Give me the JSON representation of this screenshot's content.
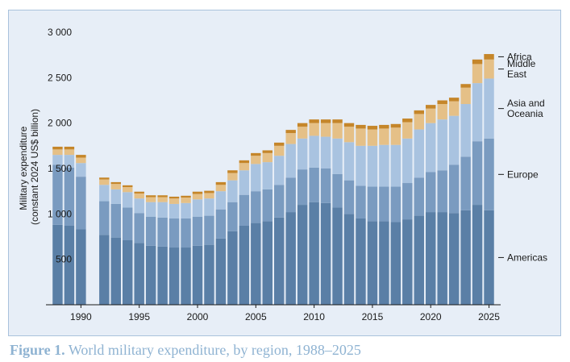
{
  "caption": {
    "label": "Figure 1.",
    "text": "World military expenditure, by region, 1988–2025"
  },
  "chart_data": {
    "type": "bar",
    "stacked": true,
    "ylabel_lines": [
      "Military expenditure",
      "(constant 2024 US$ billion)"
    ],
    "ylim": [
      0,
      3000
    ],
    "yticks": [
      500,
      1000,
      1500,
      2000,
      2500,
      3000
    ],
    "ytick_labels": [
      "500",
      "1 000",
      "1 500",
      "2 000",
      "2 500",
      "3 000"
    ],
    "xlim": [
      1987,
      2026
    ],
    "xticks": [
      1990,
      1995,
      2000,
      2005,
      2010,
      2015,
      2020,
      2025
    ],
    "xtick_labels": [
      "1990",
      "1995",
      "2000",
      "2005",
      "2010",
      "2015",
      "2020",
      "2025"
    ],
    "grid": false,
    "legend_position": "right, labels aligned to the final bar",
    "legend": [
      {
        "lines": [
          "Africa"
        ],
        "series": "Africa"
      },
      {
        "lines": [
          "Middle",
          "East"
        ],
        "series": "Middle East"
      },
      {
        "lines": [
          "Asia and",
          "Oceania"
        ],
        "series": "Asia and Oceania"
      },
      {
        "lines": [
          "Europe"
        ],
        "series": "Europe"
      },
      {
        "lines": [
          "Americas"
        ],
        "series": "Americas"
      }
    ],
    "x": [
      1988,
      1989,
      1990,
      1992,
      1993,
      1994,
      1995,
      1996,
      1997,
      1998,
      1999,
      2000,
      2001,
      2002,
      2003,
      2004,
      2005,
      2006,
      2007,
      2008,
      2009,
      2010,
      2011,
      2012,
      2013,
      2014,
      2015,
      2016,
      2017,
      2018,
      2019,
      2020,
      2021,
      2022,
      2023,
      2024,
      2025
    ],
    "series": [
      {
        "name": "Americas",
        "color": "#5a7fa6",
        "values": [
          880,
          870,
          830,
          770,
          740,
          710,
          680,
          650,
          640,
          630,
          630,
          650,
          660,
          730,
          810,
          870,
          900,
          920,
          960,
          1020,
          1100,
          1130,
          1120,
          1070,
          1000,
          950,
          920,
          920,
          910,
          940,
          980,
          1020,
          1020,
          1010,
          1040,
          1100,
          1040
        ]
      },
      {
        "name": "Europe",
        "color": "#7a9bc0",
        "values": [
          660,
          640,
          580,
          370,
          370,
          360,
          330,
          320,
          320,
          320,
          320,
          320,
          320,
          320,
          320,
          340,
          350,
          350,
          360,
          380,
          390,
          380,
          380,
          370,
          370,
          360,
          380,
          380,
          390,
          400,
          420,
          440,
          460,
          530,
          590,
          700,
          790
        ]
      },
      {
        "name": "Asia and Oceania",
        "color": "#a9c3e0",
        "values": [
          110,
          140,
          150,
          180,
          160,
          170,
          160,
          160,
          170,
          160,
          170,
          190,
          190,
          200,
          240,
          270,
          300,
          300,
          320,
          370,
          340,
          350,
          350,
          390,
          420,
          440,
          450,
          460,
          460,
          490,
          530,
          540,
          560,
          540,
          580,
          640,
          660
        ]
      },
      {
        "name": "Middle East",
        "color": "#e5c087",
        "values": [
          60,
          60,
          60,
          60,
          60,
          55,
          55,
          55,
          55,
          60,
          60,
          60,
          60,
          70,
          80,
          80,
          90,
          100,
          110,
          120,
          130,
          140,
          150,
          170,
          170,
          190,
          180,
          180,
          190,
          180,
          170,
          160,
          170,
          160,
          180,
          210,
          210
        ]
      },
      {
        "name": "Africa",
        "color": "#c5862a",
        "values": [
          30,
          30,
          30,
          20,
          20,
          20,
          20,
          20,
          20,
          20,
          20,
          25,
          25,
          30,
          30,
          30,
          30,
          30,
          35,
          35,
          40,
          40,
          40,
          40,
          40,
          40,
          40,
          40,
          40,
          40,
          40,
          40,
          40,
          40,
          40,
          50,
          60
        ]
      }
    ]
  }
}
